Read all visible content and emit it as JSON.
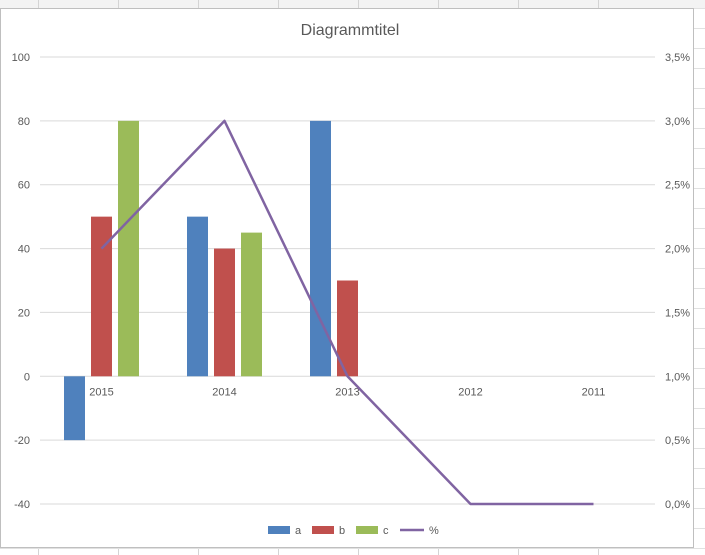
{
  "chart_data": {
    "type": "bar",
    "title": "Diagrammtitel",
    "categories": [
      "2015",
      "2014",
      "2013",
      "2012",
      "2011"
    ],
    "series": [
      {
        "name": "a",
        "type": "bar",
        "axis": "primary",
        "color": "#4f81bd",
        "values": [
          -20,
          50,
          80,
          null,
          null
        ]
      },
      {
        "name": "b",
        "type": "bar",
        "axis": "primary",
        "color": "#c0504d",
        "values": [
          50,
          40,
          30,
          null,
          null
        ]
      },
      {
        "name": "c",
        "type": "bar",
        "axis": "primary",
        "color": "#9bbb59",
        "values": [
          80,
          45,
          null,
          null,
          null
        ]
      },
      {
        "name": "%",
        "type": "line",
        "axis": "secondary",
        "color": "#8064a2",
        "values": [
          0.02,
          0.03,
          0.01,
          0.0,
          0.0
        ]
      }
    ],
    "y_primary": {
      "min": -40,
      "max": 100,
      "step": 20,
      "ticks": [
        "-40",
        "-20",
        "0",
        "20",
        "40",
        "60",
        "80",
        "100"
      ]
    },
    "y_secondary": {
      "min": 0,
      "max": 0.035,
      "step": 0.005,
      "ticks": [
        "0,0%",
        "0,5%",
        "1,0%",
        "1,5%",
        "2,0%",
        "2,5%",
        "3,0%",
        "3,5%"
      ]
    },
    "grid": true,
    "legend_position": "bottom"
  }
}
